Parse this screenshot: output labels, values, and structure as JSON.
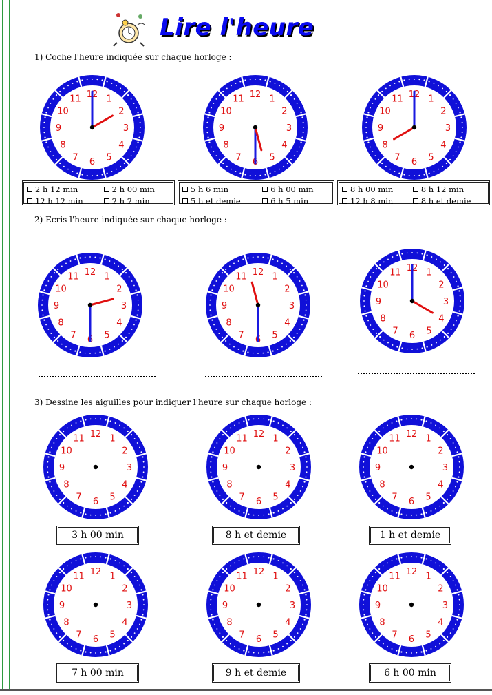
{
  "title": "Lire l'heure",
  "sections": {
    "s1": {
      "heading": "1) Coche l'heure indiquée sur chaque horloge :",
      "clocks": [
        {
          "hour": 2,
          "minute": 0,
          "choices": [
            "2 h 12 min",
            "2 h 00 min",
            "12 h 12 min",
            "2 h 2 min"
          ]
        },
        {
          "hour": 5,
          "minute": 30,
          "choices": [
            "5 h 6 min",
            "6 h 00 min",
            "5 h et demie",
            "6 h 5 min"
          ]
        },
        {
          "hour": 8,
          "minute": 0,
          "choices": [
            "8 h 00 min",
            "8 h 12 min",
            "12 h 8 min",
            "8 h et demie"
          ]
        }
      ]
    },
    "s2": {
      "heading": "2) Ecris l'heure indiquée sur chaque horloge :",
      "clocks": [
        {
          "hour": 2,
          "minute": 30
        },
        {
          "hour": 11,
          "minute": 30
        },
        {
          "hour": 4,
          "minute": 0
        }
      ],
      "answer_lines": [
        "",
        "",
        ""
      ]
    },
    "s3": {
      "heading": "3) Dessine les aiguilles pour indiquer l'heure sur chaque horloge :",
      "labels": [
        "3 h 00 min",
        "8 h et demie",
        "1 h et demie",
        "7 h 00 min",
        "9 h et demie",
        "6 h 00 min"
      ]
    }
  },
  "clock_numbers": [
    "12",
    "1",
    "2",
    "3",
    "4",
    "5",
    "6",
    "7",
    "8",
    "9",
    "10",
    "11"
  ],
  "colors": {
    "ring": "#1010d8",
    "numbers": "#e01010",
    "minute_hand": "#1a1ae0",
    "hour_hand": "#e01010",
    "title": "#0a0af0",
    "border": "#2e9a3e"
  }
}
